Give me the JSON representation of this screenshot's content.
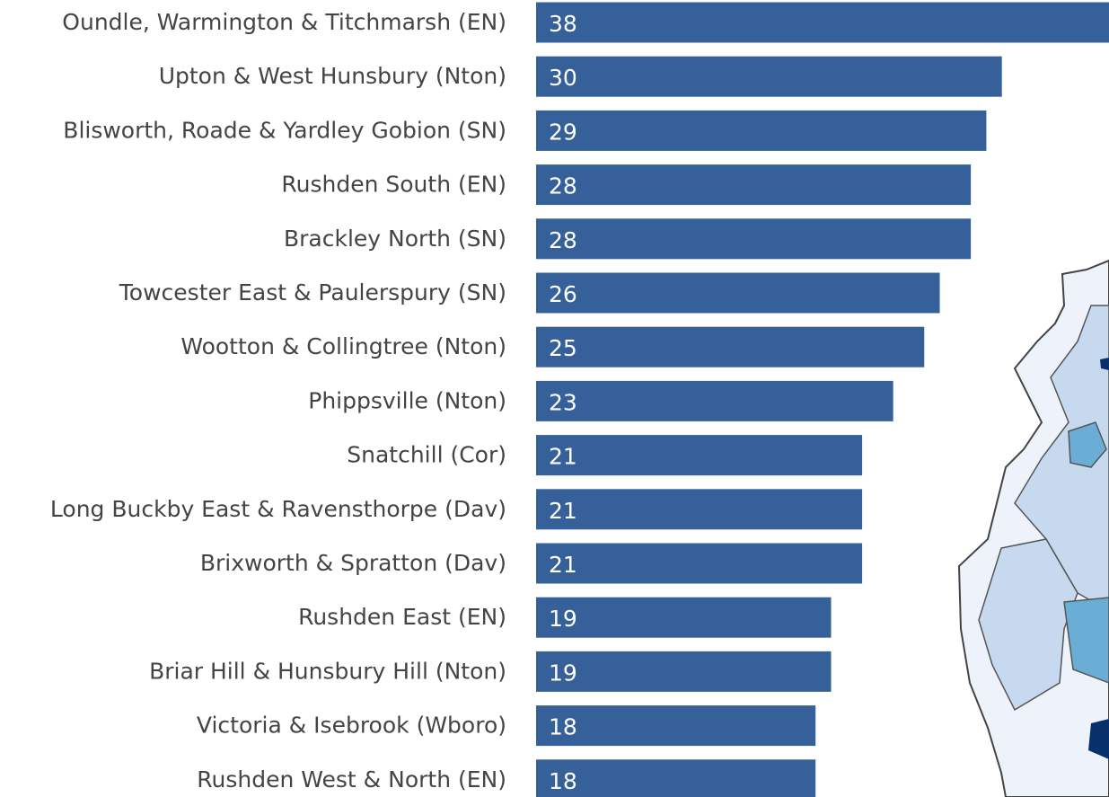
{
  "chart_data": {
    "type": "bar",
    "orientation": "horizontal",
    "categories": [
      "Oundle, Warmington & Titchmarsh (EN)",
      "Upton & West Hunsbury (Nton)",
      "Blisworth, Roade & Yardley Gobion (SN)",
      "Rushden South (EN)",
      "Brackley North (SN)",
      "Towcester East & Paulerspury (SN)",
      "Wootton & Collingtree (Nton)",
      "Phippsville (Nton)",
      "Snatchill (Cor)",
      "Long Buckby East & Ravensthorpe (Dav)",
      "Brixworth & Spratton (Dav)",
      "Rushden East (EN)",
      "Briar Hill & Hunsbury Hill (Nton)",
      "Victoria & Isebrook (Wboro)",
      "Rushden West & North (EN)"
    ],
    "values": [
      38,
      30,
      29,
      28,
      28,
      26,
      25,
      23,
      21,
      21,
      21,
      19,
      19,
      18,
      18
    ],
    "color": "#36609a",
    "xlim": [
      0,
      36.9
    ]
  }
}
